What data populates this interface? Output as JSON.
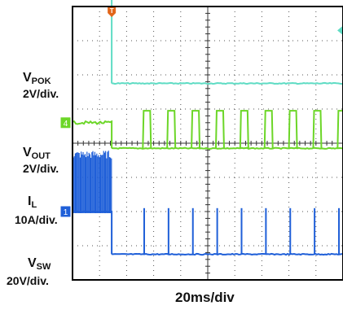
{
  "chart_data": {
    "type": "line",
    "xlabel": "20ms/div",
    "x_divisions": 10,
    "y_divisions": 8,
    "grid": true,
    "channels": [
      {
        "id": "3",
        "name": "V",
        "sub": "POK",
        "scale": "2V/div.",
        "color": "#9b4fd0",
        "trace": [
          [
            0,
            6.8
          ],
          [
            1.45,
            6.8
          ],
          [
            1.45,
            4.3
          ],
          [
            10,
            4.3
          ]
        ]
      },
      {
        "id": "2",
        "name": "V",
        "sub": "OUT",
        "scale": "2V/div.",
        "color": "#5fdcc4",
        "trace": [
          [
            0,
            4.85
          ],
          [
            1.45,
            4.85
          ],
          [
            1.45,
            1.75
          ],
          [
            10,
            1.75
          ]
        ]
      },
      {
        "id": "4",
        "name": "I",
        "sub": "L",
        "scale": "10A/div.",
        "color": "#6cd628",
        "trace": [
          [
            0,
            0.6
          ],
          [
            1.45,
            0.6
          ],
          [
            1.45,
            -0.15
          ],
          [
            10,
            -0.15
          ]
        ],
        "pulses_x": [
          2.6,
          3.5,
          4.4,
          5.3,
          6.2,
          7.1,
          8.0,
          8.9,
          9.8
        ],
        "pulse_top": 0.95
      },
      {
        "id": "1",
        "name": "V",
        "sub": "SW",
        "scale": "20V/div.",
        "color": "#1f5fd8",
        "trace": [
          [
            0,
            -2.0
          ],
          [
            1.45,
            -2.0
          ],
          [
            1.45,
            -3.25
          ],
          [
            10,
            -3.25
          ]
        ],
        "spikes_x": [
          2.65,
          3.55,
          4.45,
          5.35,
          6.25,
          7.15,
          8.05,
          8.95,
          9.85
        ],
        "spike_top": -1.9
      }
    ],
    "trigger": {
      "label": "T",
      "x": 1.45,
      "color": "#e2661a"
    },
    "ref_marker": {
      "y": 3.3,
      "color": "#5fdcc4"
    }
  }
}
